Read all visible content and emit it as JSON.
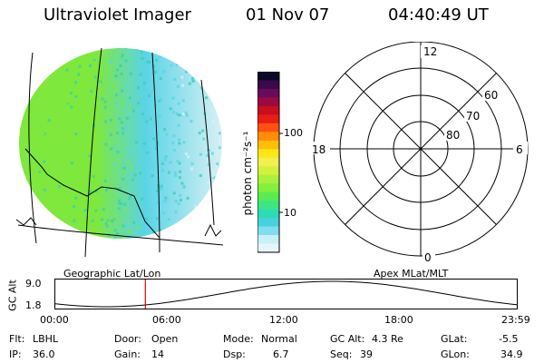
{
  "header": {
    "instrument": "Ultraviolet Imager",
    "date": "01 Nov 07",
    "time": "04:40:49 UT"
  },
  "colorbar": {
    "unit_label": "photon cm⁻²s⁻¹",
    "ticks": [
      "100",
      "10"
    ],
    "colors": [
      "#0a0a28",
      "#3a0a4a",
      "#6a0a5a",
      "#9a0a40",
      "#c80f1e",
      "#e81e14",
      "#ff5014",
      "#ff8c0a",
      "#ffbe0a",
      "#ffe614",
      "#f0f050",
      "#d2f03c",
      "#aaf03c",
      "#82f03c",
      "#5aeb50",
      "#3ce682",
      "#2ddcb4",
      "#46d2dc",
      "#82dcf0",
      "#c8f0f8",
      "#e6f5f8"
    ]
  },
  "image": {
    "colors": {
      "green": "#7ee83c",
      "teal": "#3ccfb4",
      "cyan": "#5ad4e6",
      "pale": "#d8f0f4"
    }
  },
  "polar": {
    "labels": {
      "top": "12",
      "left": "18",
      "right": "6",
      "bottom": "0"
    },
    "lat_labels": [
      "60",
      "70",
      "80"
    ]
  },
  "timeline": {
    "left_label": "Geographic Lat/Lon",
    "right_label": "Apex MLat/MLT",
    "axis_title": "GC Alt",
    "y_ticks": [
      "9.0",
      "1.8"
    ],
    "x_ticks": [
      "00:00",
      "06:00",
      "12:00",
      "18:00",
      "23:59"
    ],
    "current_time_fraction": 0.195
  },
  "footer": {
    "row1": [
      {
        "label": "Flt:",
        "value": "LBHL"
      },
      {
        "label": "Door:",
        "value": "Open"
      },
      {
        "label": "Mode:",
        "value": "Normal"
      },
      {
        "label": "GC Alt:",
        "value": "4.3 Re"
      },
      {
        "label": "GLat:",
        "value": "-5.5"
      }
    ],
    "row2": [
      {
        "label": "IP:",
        "value": "36.0"
      },
      {
        "label": "Gain:",
        "value": "14"
      },
      {
        "label": "Dsp:",
        "value": "6.7"
      },
      {
        "label": "Seq:",
        "value": "39"
      },
      {
        "label": "GLon:",
        "value": "34.9"
      }
    ]
  }
}
